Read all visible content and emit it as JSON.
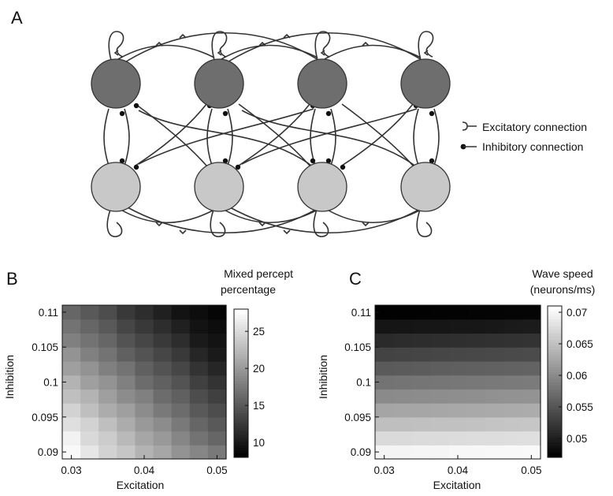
{
  "panels": {
    "a": "A",
    "b": "B",
    "c": "C"
  },
  "legend": {
    "excitatory": "Excitatory connection",
    "inhibitory": "Inhibitory connection"
  },
  "network": {
    "columns": 4,
    "colors": {
      "top": "#6e6e6e",
      "bottom": "#c8c8c8",
      "edge": "#333333"
    }
  },
  "chart_data": [
    {
      "type": "heatmap",
      "panel": "B",
      "title": "",
      "colorbar_label": [
        "Mixed percept",
        "percentage"
      ],
      "xlabel": "Excitation",
      "ylabel": "Inhibition",
      "xlim": [
        0.03,
        0.05
      ],
      "ylim": [
        0.09,
        0.11
      ],
      "xticks": [
        "0.03",
        "0.04",
        "0.05"
      ],
      "yticks": [
        "0.09",
        "0.095",
        "0.1",
        "0.105",
        "0.11"
      ],
      "colorbar_range": [
        8,
        28
      ],
      "colorbar_ticks": [
        "10",
        "15",
        "20",
        "25"
      ],
      "rows": 11,
      "cols": 9,
      "z": [
        [
          27.5,
          26.0,
          24.5,
          23.5,
          22.0,
          21.0,
          19.5,
          18.5,
          17.5
        ],
        [
          27.0,
          25.0,
          24.0,
          22.5,
          21.0,
          20.0,
          18.5,
          17.0,
          16.0
        ],
        [
          25.5,
          24.5,
          23.0,
          21.5,
          20.0,
          19.0,
          17.5,
          16.0,
          15.0
        ],
        [
          24.5,
          23.0,
          21.5,
          20.5,
          19.0,
          17.5,
          16.5,
          15.0,
          14.0
        ],
        [
          23.0,
          22.0,
          20.5,
          19.0,
          18.0,
          16.5,
          15.5,
          14.0,
          13.0
        ],
        [
          22.0,
          20.5,
          19.5,
          18.0,
          16.5,
          15.5,
          14.5,
          13.0,
          12.0
        ],
        [
          20.5,
          19.5,
          18.0,
          17.0,
          15.5,
          14.5,
          13.5,
          12.0,
          11.0
        ],
        [
          19.5,
          18.0,
          17.0,
          15.5,
          14.5,
          13.5,
          12.5,
          11.0,
          10.0
        ],
        [
          18.0,
          17.0,
          16.0,
          14.5,
          13.5,
          12.5,
          11.5,
          10.0,
          9.5
        ],
        [
          17.0,
          16.0,
          15.0,
          13.5,
          12.5,
          11.5,
          10.5,
          9.5,
          9.0
        ],
        [
          16.0,
          15.0,
          14.0,
          12.5,
          11.5,
          10.5,
          9.5,
          9.0,
          8.5
        ]
      ]
    },
    {
      "type": "heatmap",
      "panel": "C",
      "title": "",
      "colorbar_label": [
        "Wave speed",
        "(neurons/ms)"
      ],
      "xlabel": "Excitation",
      "ylabel": "Inhibition",
      "xlim": [
        0.03,
        0.05
      ],
      "ylim": [
        0.09,
        0.11
      ],
      "xticks": [
        "0.03",
        "0.04",
        "0.05"
      ],
      "yticks": [
        "0.09",
        "0.095",
        "0.1",
        "0.105",
        "0.11"
      ],
      "colorbar_range": [
        0.047,
        0.071
      ],
      "colorbar_ticks": [
        "0.05",
        "0.055",
        "0.06",
        "0.065",
        "0.07"
      ],
      "rows": 11,
      "cols": 9,
      "z": [
        [
          0.07,
          0.07,
          0.0701,
          0.0701,
          0.0702,
          0.0702,
          0.0703,
          0.0703,
          0.0704
        ],
        [
          0.0675,
          0.0675,
          0.0676,
          0.0676,
          0.0677,
          0.0678,
          0.0678,
          0.0679,
          0.068
        ],
        [
          0.065,
          0.065,
          0.0651,
          0.0652,
          0.0652,
          0.0653,
          0.0654,
          0.0655,
          0.0656
        ],
        [
          0.0625,
          0.0626,
          0.0626,
          0.0627,
          0.0628,
          0.0629,
          0.063,
          0.0631,
          0.0632
        ],
        [
          0.06,
          0.0601,
          0.0602,
          0.0603,
          0.0604,
          0.0605,
          0.0606,
          0.0607,
          0.0608
        ],
        [
          0.0578,
          0.0579,
          0.058,
          0.0581,
          0.0582,
          0.0583,
          0.0584,
          0.0585,
          0.0586
        ],
        [
          0.0555,
          0.0556,
          0.0557,
          0.0558,
          0.0559,
          0.056,
          0.0561,
          0.0562,
          0.0563
        ],
        [
          0.0533,
          0.0534,
          0.0535,
          0.0536,
          0.0537,
          0.0538,
          0.0539,
          0.054,
          0.0541
        ],
        [
          0.051,
          0.0511,
          0.0512,
          0.0513,
          0.0514,
          0.0515,
          0.0516,
          0.0517,
          0.0518
        ],
        [
          0.049,
          0.049,
          0.0491,
          0.0491,
          0.0492,
          0.0492,
          0.0493,
          0.0494,
          0.0495
        ],
        [
          0.0472,
          0.0472,
          0.0472,
          0.0473,
          0.0473,
          0.0474,
          0.0474,
          0.0475,
          0.0475
        ]
      ]
    }
  ]
}
